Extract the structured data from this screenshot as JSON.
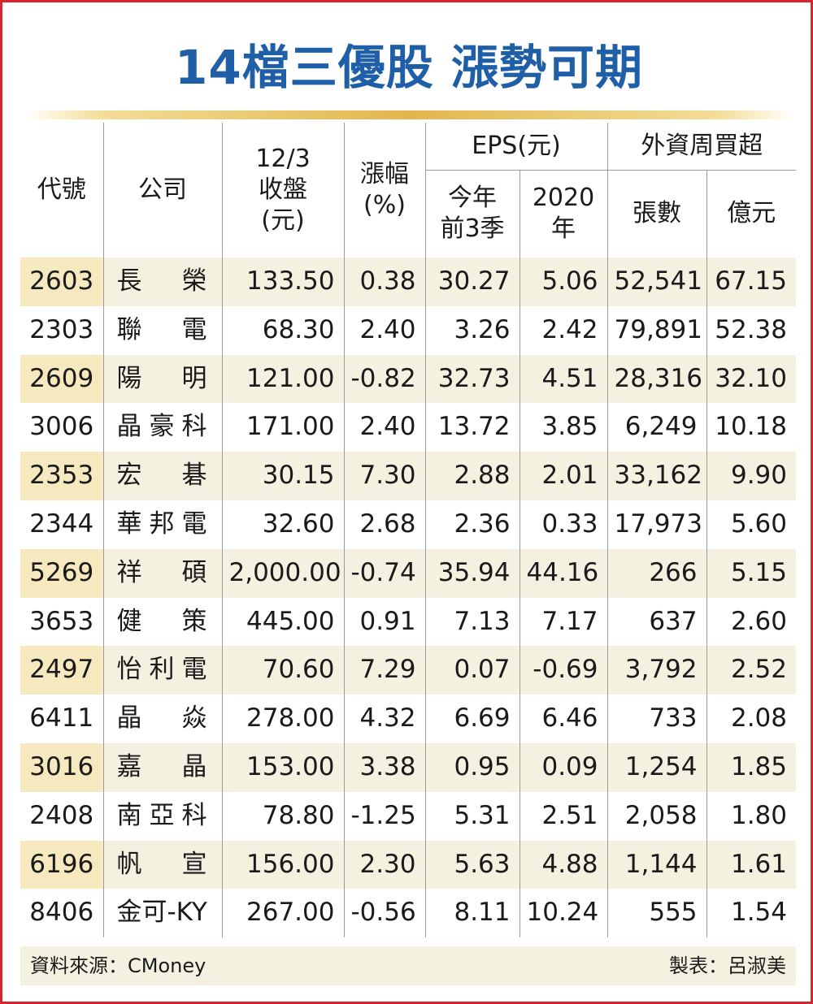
{
  "title": "14檔三優股 漲勢可期",
  "headers": {
    "code": "代號",
    "company": "公司",
    "close_line1": "12/3",
    "close_line2": "收盤",
    "close_line3": "(元)",
    "change_line1": "漲幅",
    "change_line2": "(%)",
    "eps_group": "EPS(元)",
    "eps_ytd_line1": "今年",
    "eps_ytd_line2": "前3季",
    "eps_2020_line1": "2020",
    "eps_2020_line2": "年",
    "foreign_group": "外資周買超",
    "foreign_lots": "張數",
    "foreign_amount": "億元"
  },
  "chart_data": {
    "type": "table",
    "title": "14檔三優股 漲勢可期",
    "columns": [
      "代號",
      "公司",
      "12/3收盤(元)",
      "漲幅(%)",
      "EPS(元) 今年前3季",
      "EPS(元) 2020年",
      "外資周買超 張數",
      "外資周買超 億元"
    ],
    "rows": [
      {
        "code": "2603",
        "company": "長榮",
        "close": "133.50",
        "change": "0.38",
        "eps_ytd": "30.27",
        "eps_2020": "5.06",
        "lots": "52,541",
        "amount": "67.15"
      },
      {
        "code": "2303",
        "company": "聯電",
        "close": "68.30",
        "change": "2.40",
        "eps_ytd": "3.26",
        "eps_2020": "2.42",
        "lots": "79,891",
        "amount": "52.38"
      },
      {
        "code": "2609",
        "company": "陽明",
        "close": "121.00",
        "change": "-0.82",
        "eps_ytd": "32.73",
        "eps_2020": "4.51",
        "lots": "28,316",
        "amount": "32.10"
      },
      {
        "code": "3006",
        "company": "晶豪科",
        "close": "171.00",
        "change": "2.40",
        "eps_ytd": "13.72",
        "eps_2020": "3.85",
        "lots": "6,249",
        "amount": "10.18"
      },
      {
        "code": "2353",
        "company": "宏碁",
        "close": "30.15",
        "change": "7.30",
        "eps_ytd": "2.88",
        "eps_2020": "2.01",
        "lots": "33,162",
        "amount": "9.90"
      },
      {
        "code": "2344",
        "company": "華邦電",
        "close": "32.60",
        "change": "2.68",
        "eps_ytd": "2.36",
        "eps_2020": "0.33",
        "lots": "17,973",
        "amount": "5.60"
      },
      {
        "code": "5269",
        "company": "祥碩",
        "close": "2,000.00",
        "change": "-0.74",
        "eps_ytd": "35.94",
        "eps_2020": "44.16",
        "lots": "266",
        "amount": "5.15"
      },
      {
        "code": "3653",
        "company": "健策",
        "close": "445.00",
        "change": "0.91",
        "eps_ytd": "7.13",
        "eps_2020": "7.17",
        "lots": "637",
        "amount": "2.60"
      },
      {
        "code": "2497",
        "company": "怡利電",
        "close": "70.60",
        "change": "7.29",
        "eps_ytd": "0.07",
        "eps_2020": "-0.69",
        "lots": "3,792",
        "amount": "2.52"
      },
      {
        "code": "6411",
        "company": "晶焱",
        "close": "278.00",
        "change": "4.32",
        "eps_ytd": "6.69",
        "eps_2020": "6.46",
        "lots": "733",
        "amount": "2.08"
      },
      {
        "code": "3016",
        "company": "嘉晶",
        "close": "153.00",
        "change": "3.38",
        "eps_ytd": "0.95",
        "eps_2020": "0.09",
        "lots": "1,254",
        "amount": "1.85"
      },
      {
        "code": "2408",
        "company": "南亞科",
        "close": "78.80",
        "change": "-1.25",
        "eps_ytd": "5.31",
        "eps_2020": "2.51",
        "lots": "2,058",
        "amount": "1.80"
      },
      {
        "code": "6196",
        "company": "帆宣",
        "close": "156.00",
        "change": "2.30",
        "eps_ytd": "5.63",
        "eps_2020": "4.88",
        "lots": "1,144",
        "amount": "1.61"
      },
      {
        "code": "8406",
        "company": "金可-KY",
        "close": "267.00",
        "change": "-0.56",
        "eps_ytd": "8.11",
        "eps_2020": "10.24",
        "lots": "555",
        "amount": "1.54"
      }
    ]
  },
  "footer": {
    "source": "資料來源：CMoney",
    "maker": "製表：呂淑美"
  },
  "colors": {
    "title": "#1f5fa8",
    "frame": "#d8252c",
    "band": "#f5f1e1",
    "code_band": "#f7e9bf",
    "rule": "#e2b64d"
  }
}
